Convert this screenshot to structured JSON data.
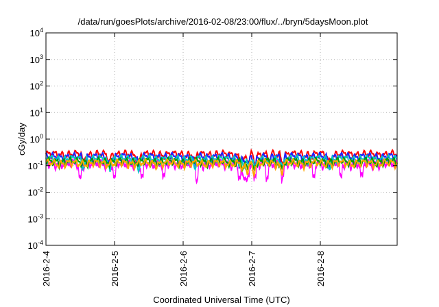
{
  "chart_data": {
    "type": "area",
    "title": "/data/run/goesPlots/archive/2016-02-08/23:00/flux/../bryn/5daysMoon.plot",
    "xlabel": "Coordinated Universal Time (UTC)",
    "ylabel": "cGy/day",
    "y_scale": "log",
    "ylim": [
      0.0001,
      10000
    ],
    "y_ticks": [
      {
        "base": "10",
        "exp": "4"
      },
      {
        "base": "10",
        "exp": "3"
      },
      {
        "base": "10",
        "exp": "2"
      },
      {
        "base": "10",
        "exp": "1"
      },
      {
        "base": "10",
        "exp": "0"
      },
      {
        "base": "10",
        "exp": "-1"
      },
      {
        "base": "10",
        "exp": "-2"
      },
      {
        "base": "10",
        "exp": "-3"
      },
      {
        "base": "10",
        "exp": "-4"
      }
    ],
    "x_ticks": [
      "2016-2-4",
      "2016-2-5",
      "2016-2-6",
      "2016-2-7",
      "2016-2-8"
    ],
    "xlim_days": [
      0,
      5.12
    ],
    "grid": true,
    "series": [
      {
        "color": "#ff0000",
        "base": 0.27,
        "dips": [
          0.55,
          0.92,
          1.35,
          2.17,
          2.83,
          2.89,
          2.95,
          3.05,
          3.25,
          3.45,
          4.13
        ]
      },
      {
        "color": "#2020ff",
        "base": 0.22,
        "dips": [
          0.55,
          0.92,
          1.35,
          2.17,
          2.83,
          2.89,
          2.95,
          3.05,
          3.25,
          3.45,
          4.13
        ]
      },
      {
        "color": "#00c8c8",
        "base": 0.18,
        "dips": [
          0.55,
          0.92,
          1.35,
          2.17,
          2.83,
          2.89,
          2.95,
          3.05,
          3.25,
          3.45,
          4.13
        ]
      },
      {
        "color": "#00a000",
        "base": 0.145,
        "dips": [
          2.87,
          2.93,
          3.03,
          3.43
        ]
      },
      {
        "color": "#ffa500",
        "base": 0.125,
        "dips": [
          2.87,
          2.93,
          3.03,
          3.43
        ]
      },
      {
        "color": "#ff00ff",
        "base": 0.105,
        "fill": true,
        "dips": [
          0.5,
          1.0,
          1.4,
          1.72,
          2.2,
          2.82,
          2.87,
          2.91,
          2.95,
          3.05,
          3.22,
          3.45,
          3.9,
          4.3,
          4.6
        ]
      }
    ]
  }
}
